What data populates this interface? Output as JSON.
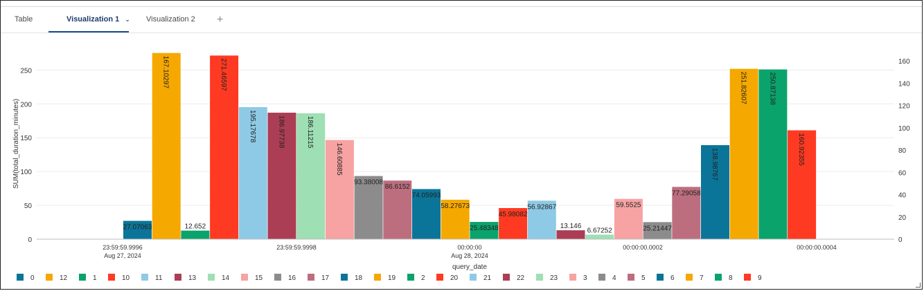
{
  "tabs": [
    {
      "label": "Table",
      "active": false
    },
    {
      "label": "Visualization 1",
      "active": true
    },
    {
      "label": "Visualization 2",
      "active": false
    }
  ],
  "add_tab_label": "+",
  "chart_data": {
    "type": "bar",
    "xlabel": "query_date",
    "ylabel": "SUM(total_duration_minutes)",
    "ylim": [
      0,
      280
    ],
    "y2lim": [
      0,
      170
    ],
    "yticks": [
      0,
      50,
      100,
      150,
      200,
      250
    ],
    "y2ticks": [
      0,
      20,
      40,
      60,
      80,
      100,
      120,
      140,
      160
    ],
    "xtick_labels": [
      {
        "lines": [
          "23:59:59.9996",
          "Aug 27, 2024"
        ]
      },
      {
        "lines": [
          "23:59:59.9998"
        ]
      },
      {
        "lines": [
          "00:00:00",
          "Aug 28, 2024"
        ]
      },
      {
        "lines": [
          "00:00:00.0002"
        ]
      },
      {
        "lines": [
          "00:00:00.0004"
        ]
      }
    ],
    "legend_position": "bottom-left",
    "grid": true,
    "series": [
      {
        "name": "0",
        "color": "#0b7599"
      },
      {
        "name": "12",
        "color": "#f5a800"
      },
      {
        "name": "1",
        "color": "#0aa36b"
      },
      {
        "name": "10",
        "color": "#ff3a22"
      },
      {
        "name": "11",
        "color": "#8ecae6"
      },
      {
        "name": "13",
        "color": "#ab3e55"
      },
      {
        "name": "14",
        "color": "#9edfb3"
      },
      {
        "name": "15",
        "color": "#f7a3a3"
      },
      {
        "name": "16",
        "color": "#8c8c8c"
      },
      {
        "name": "17",
        "color": "#bd6e7e"
      },
      {
        "name": "18",
        "color": "#0b7599"
      },
      {
        "name": "19",
        "color": "#f5a800"
      },
      {
        "name": "2",
        "color": "#0aa36b"
      },
      {
        "name": "20",
        "color": "#ff3a22"
      },
      {
        "name": "21",
        "color": "#8ecae6"
      },
      {
        "name": "22",
        "color": "#ab3e55"
      },
      {
        "name": "23",
        "color": "#9edfb3"
      },
      {
        "name": "3",
        "color": "#f7a3a3"
      },
      {
        "name": "4",
        "color": "#8c8c8c"
      },
      {
        "name": "5",
        "color": "#bd6e7e"
      },
      {
        "name": "6",
        "color": "#0b7599"
      },
      {
        "name": "7",
        "color": "#f5a800"
      },
      {
        "name": "8",
        "color": "#0aa36b"
      },
      {
        "name": "9",
        "color": "#ff3a22"
      }
    ],
    "bars": [
      {
        "series": "0",
        "value": 27.07063,
        "label": "27.07063",
        "axis": "left",
        "vertical": false
      },
      {
        "series": "12",
        "value": 167.10297,
        "label": "167.10297",
        "axis": "right",
        "vertical": true
      },
      {
        "series": "1",
        "value": 12.652,
        "label": "12.652",
        "axis": "left",
        "vertical": false
      },
      {
        "series": "10",
        "value": 271.46597,
        "label": "271.46597",
        "axis": "left",
        "vertical": true
      },
      {
        "series": "11",
        "value": 195.17678,
        "label": "195.17678",
        "axis": "left",
        "vertical": true
      },
      {
        "series": "13",
        "value": 186.97738,
        "label": "186.97738",
        "axis": "left",
        "vertical": true
      },
      {
        "series": "14",
        "value": 186.11215,
        "label": "186.11215",
        "axis": "left",
        "vertical": true
      },
      {
        "series": "15",
        "value": 146.60885,
        "label": "146.60885",
        "axis": "left",
        "vertical": true
      },
      {
        "series": "16",
        "value": 93.38008,
        "label": "93.38008",
        "axis": "left",
        "vertical": false
      },
      {
        "series": "17",
        "value": 86.6152,
        "label": "86.6152",
        "axis": "left",
        "vertical": false
      },
      {
        "series": "18",
        "value": 74.05993,
        "label": "74.05993",
        "axis": "left",
        "vertical": false
      },
      {
        "series": "19",
        "value": 58.27673,
        "label": "58.27673",
        "axis": "left",
        "vertical": false
      },
      {
        "series": "2",
        "value": 25.48348,
        "label": "25.48348",
        "axis": "left",
        "vertical": false
      },
      {
        "series": "20",
        "value": 45.98082,
        "label": "45.98082",
        "axis": "left",
        "vertical": false
      },
      {
        "series": "21",
        "value": 56.92867,
        "label": "56.92867",
        "axis": "left",
        "vertical": false
      },
      {
        "series": "22",
        "value": 13.146,
        "label": "13.146",
        "axis": "left",
        "vertical": false
      },
      {
        "series": "23",
        "value": 6.67252,
        "label": "6.67252",
        "axis": "left",
        "vertical": false
      },
      {
        "series": "3",
        "value": 59.5525,
        "label": "59.5525",
        "axis": "left",
        "vertical": false
      },
      {
        "series": "4",
        "value": 25.21447,
        "label": "25.21447",
        "axis": "left",
        "vertical": false
      },
      {
        "series": "5",
        "value": 77.29058,
        "label": "77.29058",
        "axis": "left",
        "vertical": false
      },
      {
        "series": "6",
        "value": 138.98767,
        "label": "138.98767",
        "axis": "left",
        "vertical": true
      },
      {
        "series": "7",
        "value": 251.82607,
        "label": "251.82607",
        "axis": "left",
        "vertical": true
      },
      {
        "series": "8",
        "value": 250.87138,
        "label": "250.87138",
        "axis": "left",
        "vertical": true
      },
      {
        "series": "9",
        "value": 160.92355,
        "label": "160.92355",
        "axis": "left",
        "vertical": true
      }
    ]
  }
}
